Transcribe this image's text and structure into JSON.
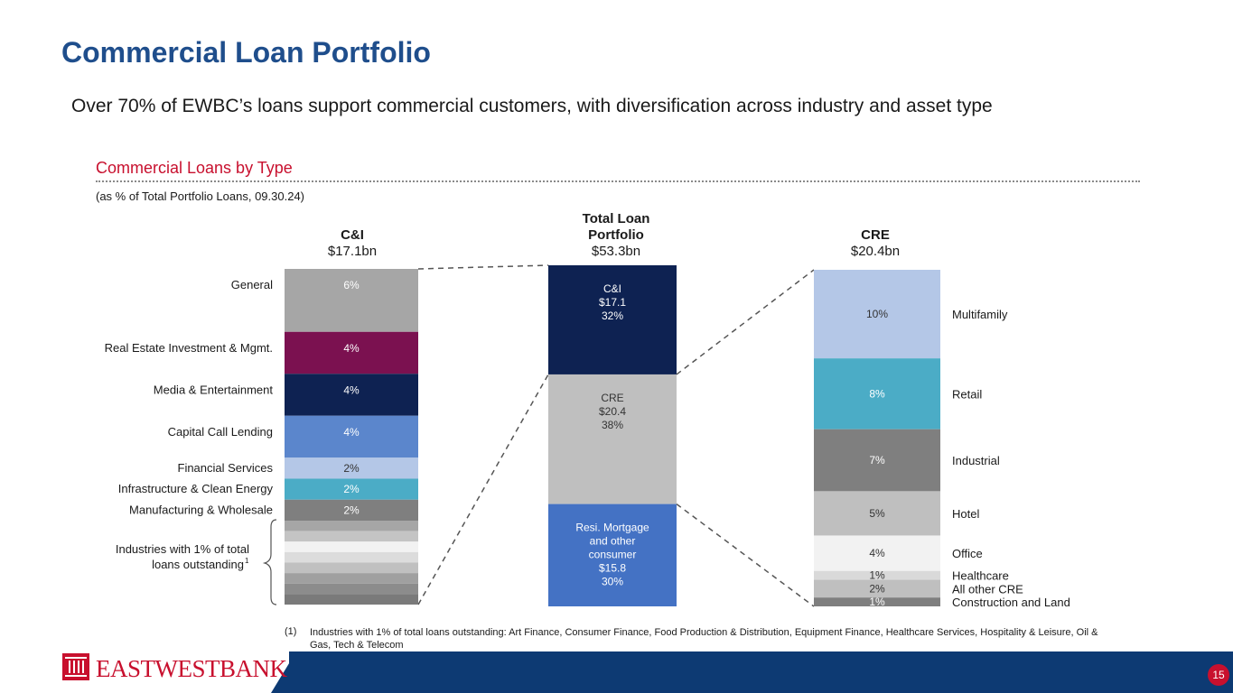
{
  "title": "Commercial Loan Portfolio",
  "subtitle": "Over 70% of EWBC’s loans support commercial customers, with diversification across industry and asset type",
  "section": {
    "title": "Commercial Loans by Type",
    "note": "(as % of Total Portfolio Loans, 09.30.24)"
  },
  "columns": {
    "ci": {
      "name": "C&I",
      "amount": "$17.1bn"
    },
    "total": {
      "name_line1": "Total Loan",
      "name_line2": "Portfolio",
      "amount": "$53.3bn"
    },
    "cre": {
      "name": "CRE",
      "amount": "$20.4bn"
    }
  },
  "bracket_label_line1": "Industries with 1% of total",
  "bracket_label_line2": "loans outstanding",
  "bracket_superscript": "1",
  "chart_data": {
    "type": "bar",
    "subtype": "stacked-column-breakdown",
    "unit": "% of total portfolio loans",
    "ci": {
      "segments": [
        {
          "name": "General",
          "value": 6,
          "label": "6%",
          "color": "#a6a6a6"
        },
        {
          "name": "Real Estate Investment & Mgmt.",
          "value": 4,
          "label": "4%",
          "color": "#7b1150"
        },
        {
          "name": "Media & Entertainment",
          "value": 4,
          "label": "4%",
          "color": "#0e2252"
        },
        {
          "name": "Capital Call Lending",
          "value": 4,
          "label": "4%",
          "color": "#5b86cc"
        },
        {
          "name": "Financial Services",
          "value": 2,
          "label": "2%",
          "color": "#b4c7e7"
        },
        {
          "name": "Infrastructure & Clean Energy",
          "value": 2,
          "label": "2%",
          "color": "#4bacc6"
        },
        {
          "name": "Manufacturing & Wholesale",
          "value": 2,
          "label": "2%",
          "color": "#7f7f7f"
        }
      ],
      "small_segments": [
        {
          "value": 1,
          "color": "#a6a6a6"
        },
        {
          "value": 1,
          "color": "#c4c4c4"
        },
        {
          "value": 1,
          "color": "#f2f2f2"
        },
        {
          "value": 1,
          "color": "#dcdcdc"
        },
        {
          "value": 1,
          "color": "#c0c0c0"
        },
        {
          "value": 1,
          "color": "#a0a0a0"
        },
        {
          "value": 1,
          "color": "#8c8c8c"
        },
        {
          "value": 1,
          "color": "#7a7a7a"
        }
      ]
    },
    "total": {
      "segments": [
        {
          "name": "C&I",
          "lines": [
            "C&I",
            "$17.1",
            "32%"
          ],
          "value": 32,
          "amount": 17.1,
          "color": "#0e2252"
        },
        {
          "name": "CRE",
          "lines": [
            "CRE",
            "$20.4",
            "38%"
          ],
          "value": 38,
          "amount": 20.4,
          "color": "#bfbfbf"
        },
        {
          "name": "Resi. Mortgage and other consumer",
          "lines": [
            "Resi. Mortgage",
            "and other",
            "consumer",
            "$15.8",
            "30%"
          ],
          "value": 30,
          "amount": 15.8,
          "color": "#4472c4"
        }
      ]
    },
    "cre": {
      "segments": [
        {
          "name": "Multifamily",
          "value": 10,
          "label": "10%",
          "color": "#b4c7e7"
        },
        {
          "name": "Retail",
          "value": 8,
          "label": "8%",
          "color": "#4bacc6"
        },
        {
          "name": "Industrial",
          "value": 7,
          "label": "7%",
          "color": "#7f7f7f"
        },
        {
          "name": "Hotel",
          "value": 5,
          "label": "5%",
          "color": "#bfbfbf"
        },
        {
          "name": "Office",
          "value": 4,
          "label": "4%",
          "color": "#f2f2f2"
        },
        {
          "name": "Healthcare",
          "value": 1,
          "label": "1%",
          "color": "#d9d9d9"
        },
        {
          "name": "All other CRE",
          "value": 2,
          "label": "2%",
          "color": "#bfbfbf"
        },
        {
          "name": "Construction and Land",
          "value": 1,
          "label": "1%",
          "color": "#7f7f7f"
        }
      ]
    }
  },
  "footnote_number": "(1)",
  "footnote_text": "Industries with 1% of total loans outstanding: Art Finance, Consumer Finance, Food Production & Distribution, Equipment Finance, Healthcare Services, Hospitality & Leisure, Oil & Gas, Tech & Telecom",
  "logo_text": "EASTWESTBANK",
  "page_number": "15",
  "colors": {
    "title": "#1f4e8c",
    "accent": "#c8102e",
    "footer": "#0d3a73"
  }
}
